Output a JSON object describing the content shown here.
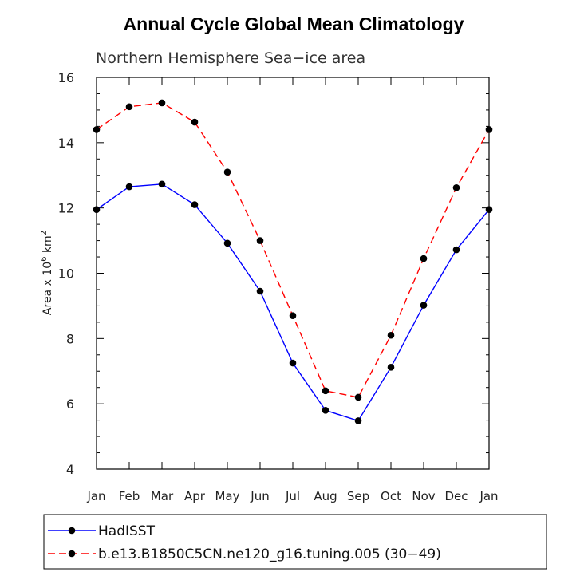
{
  "chart_data": {
    "type": "line",
    "title": "Annual Cycle Global Mean Climatology",
    "subtitle": "Northern Hemisphere Sea−ice area",
    "ylabel_main": "Area x 10",
    "ylabel_sup1": "6",
    "ylabel_mid": " km",
    "ylabel_sup2": "2",
    "categories": [
      "Jan",
      "Feb",
      "Mar",
      "Apr",
      "May",
      "Jun",
      "Jul",
      "Aug",
      "Sep",
      "Oct",
      "Nov",
      "Dec",
      "Jan"
    ],
    "ylim": [
      4,
      16
    ],
    "yticks": [
      "4",
      "6",
      "8",
      "10",
      "12",
      "14",
      "16"
    ],
    "grid": false,
    "legend_position": "bottom",
    "series": [
      {
        "name": "HadISST",
        "color": "#0000ff",
        "dash": "solid",
        "values": [
          11.95,
          12.65,
          12.73,
          12.1,
          10.92,
          9.45,
          7.25,
          5.8,
          5.48,
          7.12,
          9.02,
          10.72,
          11.95
        ]
      },
      {
        "name": "b.e13.B1850C5CN.ne120_g16.tuning.005 (30−49)",
        "color": "#ff0000",
        "dash": "dashed",
        "values": [
          14.4,
          15.1,
          15.22,
          14.63,
          13.1,
          11.0,
          8.7,
          6.4,
          6.2,
          8.1,
          10.45,
          12.62,
          14.4
        ]
      }
    ]
  }
}
